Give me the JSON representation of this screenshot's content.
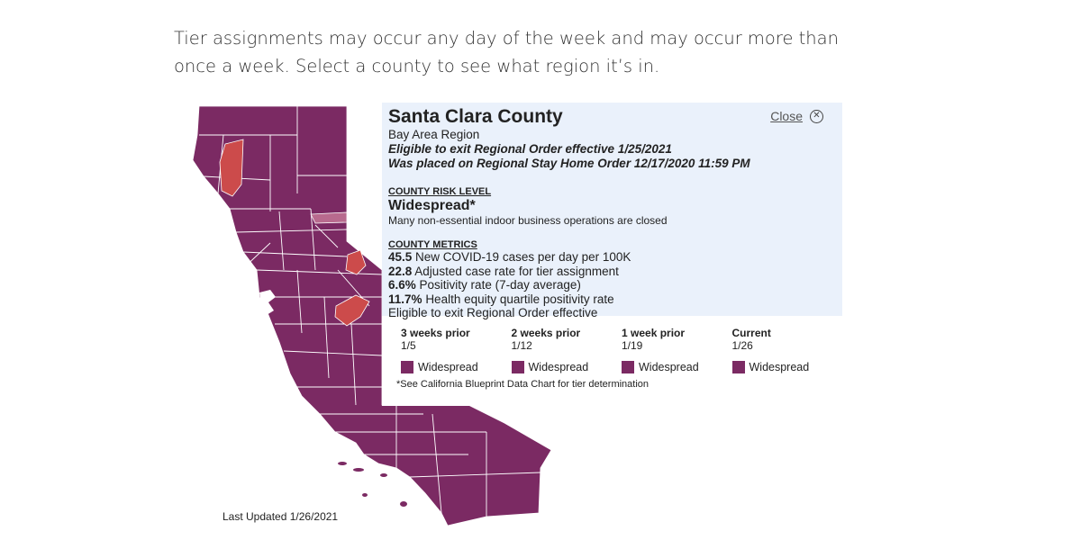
{
  "intro_text": "Tier assignments may occur any day of the week and may occur more than once a week. Select a county to see what region it’s in.",
  "last_updated": "Last Updated 1/26/2021",
  "colors": {
    "widespread": "#7b2a63",
    "highlight": "#cc4b4b",
    "selected": "#b86a8e",
    "panel_bg": "#eaf1fb"
  },
  "popup": {
    "county": "Santa Clara County",
    "close_label": "Close",
    "close_icon": "close-circle-icon",
    "region": "Bay Area Region",
    "eligible_exit": "Eligible to exit Regional Order effective 1/25/2021",
    "placed_on": "Was placed on Regional Stay Home Order 12/17/2020 11:59 PM",
    "risk_heading": "COUNTY RISK LEVEL",
    "risk_level": "Widespread*",
    "risk_desc": "Many non-essential indoor business operations are closed",
    "metrics_heading": "COUNTY METRICS",
    "metrics": [
      {
        "value": "45.5",
        "label": "New COVID-19 cases per day per 100K"
      },
      {
        "value": "22.8",
        "label": "Adjusted case rate for tier assignment"
      },
      {
        "value": "6.6%",
        "label": "Positivity rate (7-day average)"
      },
      {
        "value": "11.7%",
        "label": "Health equity quartile positivity rate"
      }
    ],
    "metrics_footer": "Eligible to exit Regional Order effective",
    "history": [
      {
        "label": "3 weeks prior",
        "date": "1/5",
        "tier": "Widespread"
      },
      {
        "label": "2 weeks prior",
        "date": "1/12",
        "tier": "Widespread"
      },
      {
        "label": "1 week prior",
        "date": "1/19",
        "tier": "Widespread"
      },
      {
        "label": "Current",
        "date": "1/26",
        "tier": "Widespread"
      }
    ],
    "footnote": "*See California Blueprint Data Chart for tier determination"
  }
}
